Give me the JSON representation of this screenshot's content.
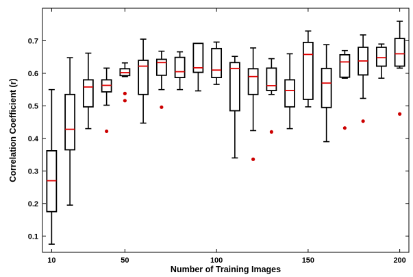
{
  "chart_data": {
    "type": "box",
    "xlabel": "Number of Training Images",
    "ylabel": "Correlation Coefficient (r)",
    "xlim": [
      5,
      205
    ],
    "ylim": [
      0.05,
      0.8
    ],
    "xticks": [
      10,
      50,
      100,
      150,
      200
    ],
    "yticks": [
      0.1,
      0.2,
      0.3,
      0.4,
      0.5,
      0.6,
      0.7
    ],
    "grid": false,
    "colors": {
      "box": "#000000",
      "median": "#e00000",
      "outlier": "#cc0000"
    },
    "boxes": [
      {
        "x": 10,
        "whisker_low": 0.075,
        "q1": 0.175,
        "median": 0.27,
        "q3": 0.362,
        "whisker_high": 0.55,
        "outliers": []
      },
      {
        "x": 20,
        "whisker_low": 0.195,
        "q1": 0.365,
        "median": 0.428,
        "q3": 0.535,
        "whisker_high": 0.648,
        "outliers": []
      },
      {
        "x": 30,
        "whisker_low": 0.43,
        "q1": 0.497,
        "median": 0.558,
        "q3": 0.58,
        "whisker_high": 0.662,
        "outliers": []
      },
      {
        "x": 40,
        "whisker_low": 0.502,
        "q1": 0.543,
        "median": 0.563,
        "q3": 0.58,
        "whisker_high": 0.616,
        "outliers": [
          0.422
        ]
      },
      {
        "x": 50,
        "whisker_low": 0.59,
        "q1": 0.593,
        "median": 0.602,
        "q3": 0.614,
        "whisker_high": 0.632,
        "outliers": [
          0.538,
          0.516
        ]
      },
      {
        "x": 60,
        "whisker_low": 0.447,
        "q1": 0.535,
        "median": 0.622,
        "q3": 0.64,
        "whisker_high": 0.705,
        "outliers": []
      },
      {
        "x": 70,
        "whisker_low": 0.55,
        "q1": 0.594,
        "median": 0.633,
        "q3": 0.643,
        "whisker_high": 0.668,
        "outliers": [
          0.496
        ]
      },
      {
        "x": 80,
        "whisker_low": 0.55,
        "q1": 0.587,
        "median": 0.605,
        "q3": 0.649,
        "whisker_high": 0.666,
        "outliers": []
      },
      {
        "x": 90,
        "whisker_low": 0.546,
        "q1": 0.603,
        "median": 0.617,
        "q3": 0.692,
        "whisker_high": 0.692,
        "outliers": []
      },
      {
        "x": 100,
        "whisker_low": 0.566,
        "q1": 0.587,
        "median": 0.61,
        "q3": 0.676,
        "whisker_high": 0.696,
        "outliers": []
      },
      {
        "x": 110,
        "whisker_low": 0.34,
        "q1": 0.485,
        "median": 0.615,
        "q3": 0.633,
        "whisker_high": 0.652,
        "outliers": []
      },
      {
        "x": 120,
        "whisker_low": 0.424,
        "q1": 0.535,
        "median": 0.59,
        "q3": 0.614,
        "whisker_high": 0.678,
        "outliers": [
          0.336
        ]
      },
      {
        "x": 130,
        "whisker_low": 0.535,
        "q1": 0.547,
        "median": 0.562,
        "q3": 0.616,
        "whisker_high": 0.645,
        "outliers": [
          0.42
        ]
      },
      {
        "x": 140,
        "whisker_low": 0.43,
        "q1": 0.497,
        "median": 0.547,
        "q3": 0.58,
        "whisker_high": 0.66,
        "outliers": []
      },
      {
        "x": 150,
        "whisker_low": 0.497,
        "q1": 0.52,
        "median": 0.658,
        "q3": 0.695,
        "whisker_high": 0.73,
        "outliers": []
      },
      {
        "x": 160,
        "whisker_low": 0.39,
        "q1": 0.495,
        "median": 0.57,
        "q3": 0.615,
        "whisker_high": 0.688,
        "outliers": []
      },
      {
        "x": 170,
        "whisker_low": 0.585,
        "q1": 0.588,
        "median": 0.635,
        "q3": 0.657,
        "whisker_high": 0.67,
        "outliers": [
          0.432
        ]
      },
      {
        "x": 180,
        "whisker_low": 0.523,
        "q1": 0.595,
        "median": 0.638,
        "q3": 0.68,
        "whisker_high": 0.718,
        "outliers": [
          0.453
        ]
      },
      {
        "x": 190,
        "whisker_low": 0.585,
        "q1": 0.622,
        "median": 0.648,
        "q3": 0.68,
        "whisker_high": 0.69,
        "outliers": []
      },
      {
        "x": 200,
        "whisker_low": 0.616,
        "q1": 0.622,
        "median": 0.66,
        "q3": 0.707,
        "whisker_high": 0.76,
        "outliers": [
          0.475
        ]
      }
    ]
  }
}
